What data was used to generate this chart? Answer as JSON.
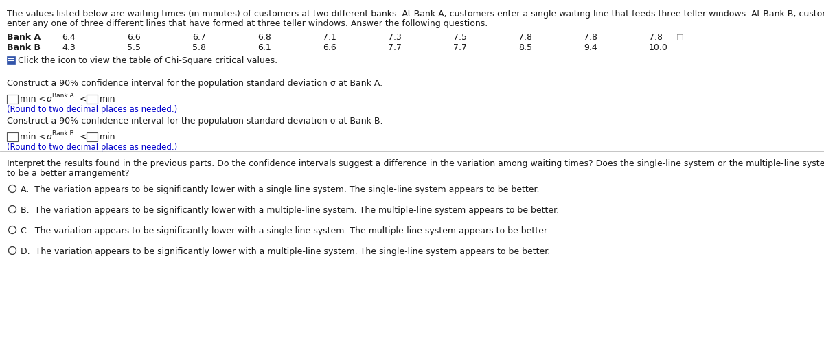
{
  "title_text": "The values listed below are waiting times (in minutes) of customers at two different banks. At Bank A, customers enter a single waiting line that feeds three teller windows. At Bank B, customers may",
  "title_text2": "enter any one of three different lines that have formed at three teller windows. Answer the following questions.",
  "bank_a_label": "Bank A",
  "bank_b_label": "Bank B",
  "bank_a_values": [
    "6.4",
    "6.6",
    "6.7",
    "6.8",
    "7.1",
    "7.3",
    "7.5",
    "7.8",
    "7.8",
    "7.8"
  ],
  "bank_b_values": [
    "4.3",
    "5.5",
    "5.8",
    "6.1",
    "6.6",
    "7.7",
    "7.7",
    "8.5",
    "9.4",
    "10.0"
  ],
  "click_icon_text": "Click the icon to view the table of Chi-Square critical values.",
  "construct_a_text": "Construct a 90% confidence interval for the population standard deviation σ at Bank A.",
  "construct_b_text": "Construct a 90% confidence interval for the population standard deviation σ at Bank B.",
  "round_note": "(Round to two decimal places as needed.)",
  "interpret_text": "Interpret the results found in the previous parts. Do the confidence intervals suggest a difference in the variation among waiting times? Does the single-line system or the multiple-line system seem",
  "interpret_text2": "to be a better arrangement?",
  "option_a": "A.  The variation appears to be significantly lower with a single line system. The single-line system appears to be better.",
  "option_b": "B.  The variation appears to be significantly lower with a multiple-line system. The multiple-line system appears to be better.",
  "option_c": "C.  The variation appears to be significantly lower with a single line system. The multiple-line system appears to be better.",
  "option_d": "D.  The variation appears to be significantly lower with a multiple-line system. The single-line system appears to be better.",
  "white": "#ffffff",
  "light_gray": "#e8e8e8",
  "text_black": "#1a1a1a",
  "blue_icon": "#3355aa",
  "round_note_color": "#0000cc",
  "separator_color": "#bbbbbb"
}
